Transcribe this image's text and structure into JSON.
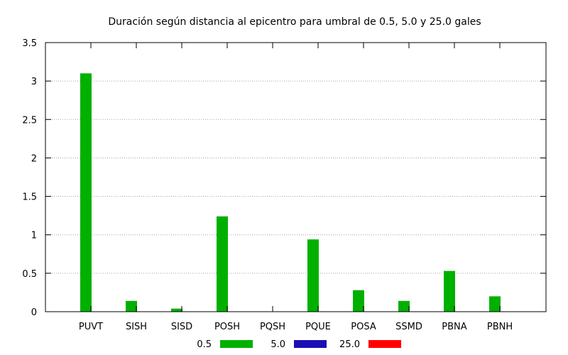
{
  "chart_data": {
    "type": "bar",
    "title": "Duración según distancia al epicentro para umbral de 0.5, 5.0 y 25.0 gales",
    "xlabel": "",
    "ylabel": "",
    "ylim": [
      0,
      3.5
    ],
    "yticks": [
      "0",
      "0.5",
      "1",
      "1.5",
      "2",
      "2.5",
      "3",
      "3.5"
    ],
    "grid": true,
    "legend_position": "bottom",
    "categories": [
      "PUVT",
      "SISH",
      "SISD",
      "POSH",
      "PQSH",
      "PQUE",
      "POSA",
      "SSMD",
      "PBNA",
      "PBNH"
    ],
    "series": [
      {
        "name": "0.5",
        "color": "#00b000",
        "values": [
          3.1,
          0.14,
          0.04,
          1.24,
          0,
          0.94,
          0.28,
          0.14,
          0.53,
          0.2
        ]
      },
      {
        "name": "5.0",
        "color": "#1a0fb4",
        "values": [
          0,
          0,
          0,
          0,
          0,
          0,
          0,
          0,
          0,
          0
        ]
      },
      {
        "name": "25.0",
        "color": "#ff0000",
        "values": [
          0,
          0,
          0,
          0,
          0,
          0,
          0,
          0,
          0,
          0
        ]
      }
    ]
  }
}
